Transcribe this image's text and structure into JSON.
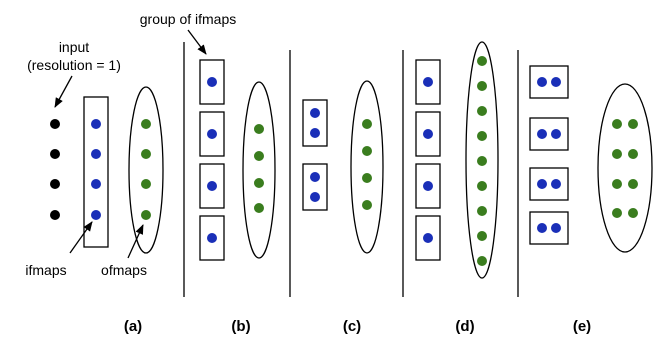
{
  "colors": {
    "input_dot": "#000000",
    "ifmap_dot": "#1a2fb8",
    "ofmap_dot": "#3a7d1e",
    "stroke": "#000000"
  },
  "annotations": {
    "input_line1": "input",
    "input_line2": "(resolution = 1)",
    "group_of_ifmaps": "group of ifmaps",
    "ifmaps": "ifmaps",
    "ofmaps": "ofmaps"
  },
  "panels": [
    {
      "label": "(a)",
      "ifmap_groups": 1,
      "ifmaps_per_group": 4,
      "group_layout": "column",
      "ofmaps": 4,
      "ofmap_columns": 1
    },
    {
      "label": "(b)",
      "ifmap_groups": 4,
      "ifmaps_per_group": 1,
      "group_layout": "single",
      "ofmaps": 4,
      "ofmap_columns": 1
    },
    {
      "label": "(c)",
      "ifmap_groups": 2,
      "ifmaps_per_group": 2,
      "group_layout": "column",
      "ofmaps": 4,
      "ofmap_columns": 1
    },
    {
      "label": "(d)",
      "ifmap_groups": 4,
      "ifmaps_per_group": 1,
      "group_layout": "single",
      "ofmaps": 8,
      "ofmap_columns": 1
    },
    {
      "label": "(e)",
      "ifmap_groups": 4,
      "ifmaps_per_group": 2,
      "group_layout": "row",
      "ofmaps": 8,
      "ofmap_columns": 2
    }
  ],
  "input_points": 4
}
